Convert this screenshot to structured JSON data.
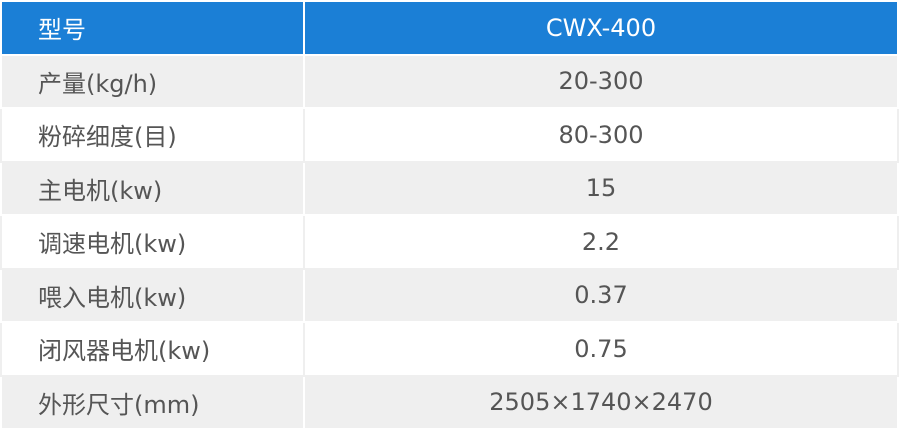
{
  "table": {
    "header": [
      "型号",
      "CWX-400"
    ],
    "rows": [
      [
        "产量(kg/h)",
        "20-300"
      ],
      [
        "粉碎细度(目)",
        "80-300"
      ],
      [
        "主电机(kw)",
        "15"
      ],
      [
        "调速电机(kw)",
        "2.2"
      ],
      [
        "喂入电机(kw)",
        "0.37"
      ],
      [
        "闭风器电机(kw)",
        "0.75"
      ],
      [
        "外形尺寸(mm)",
        "2505×1740×2470"
      ]
    ]
  }
}
